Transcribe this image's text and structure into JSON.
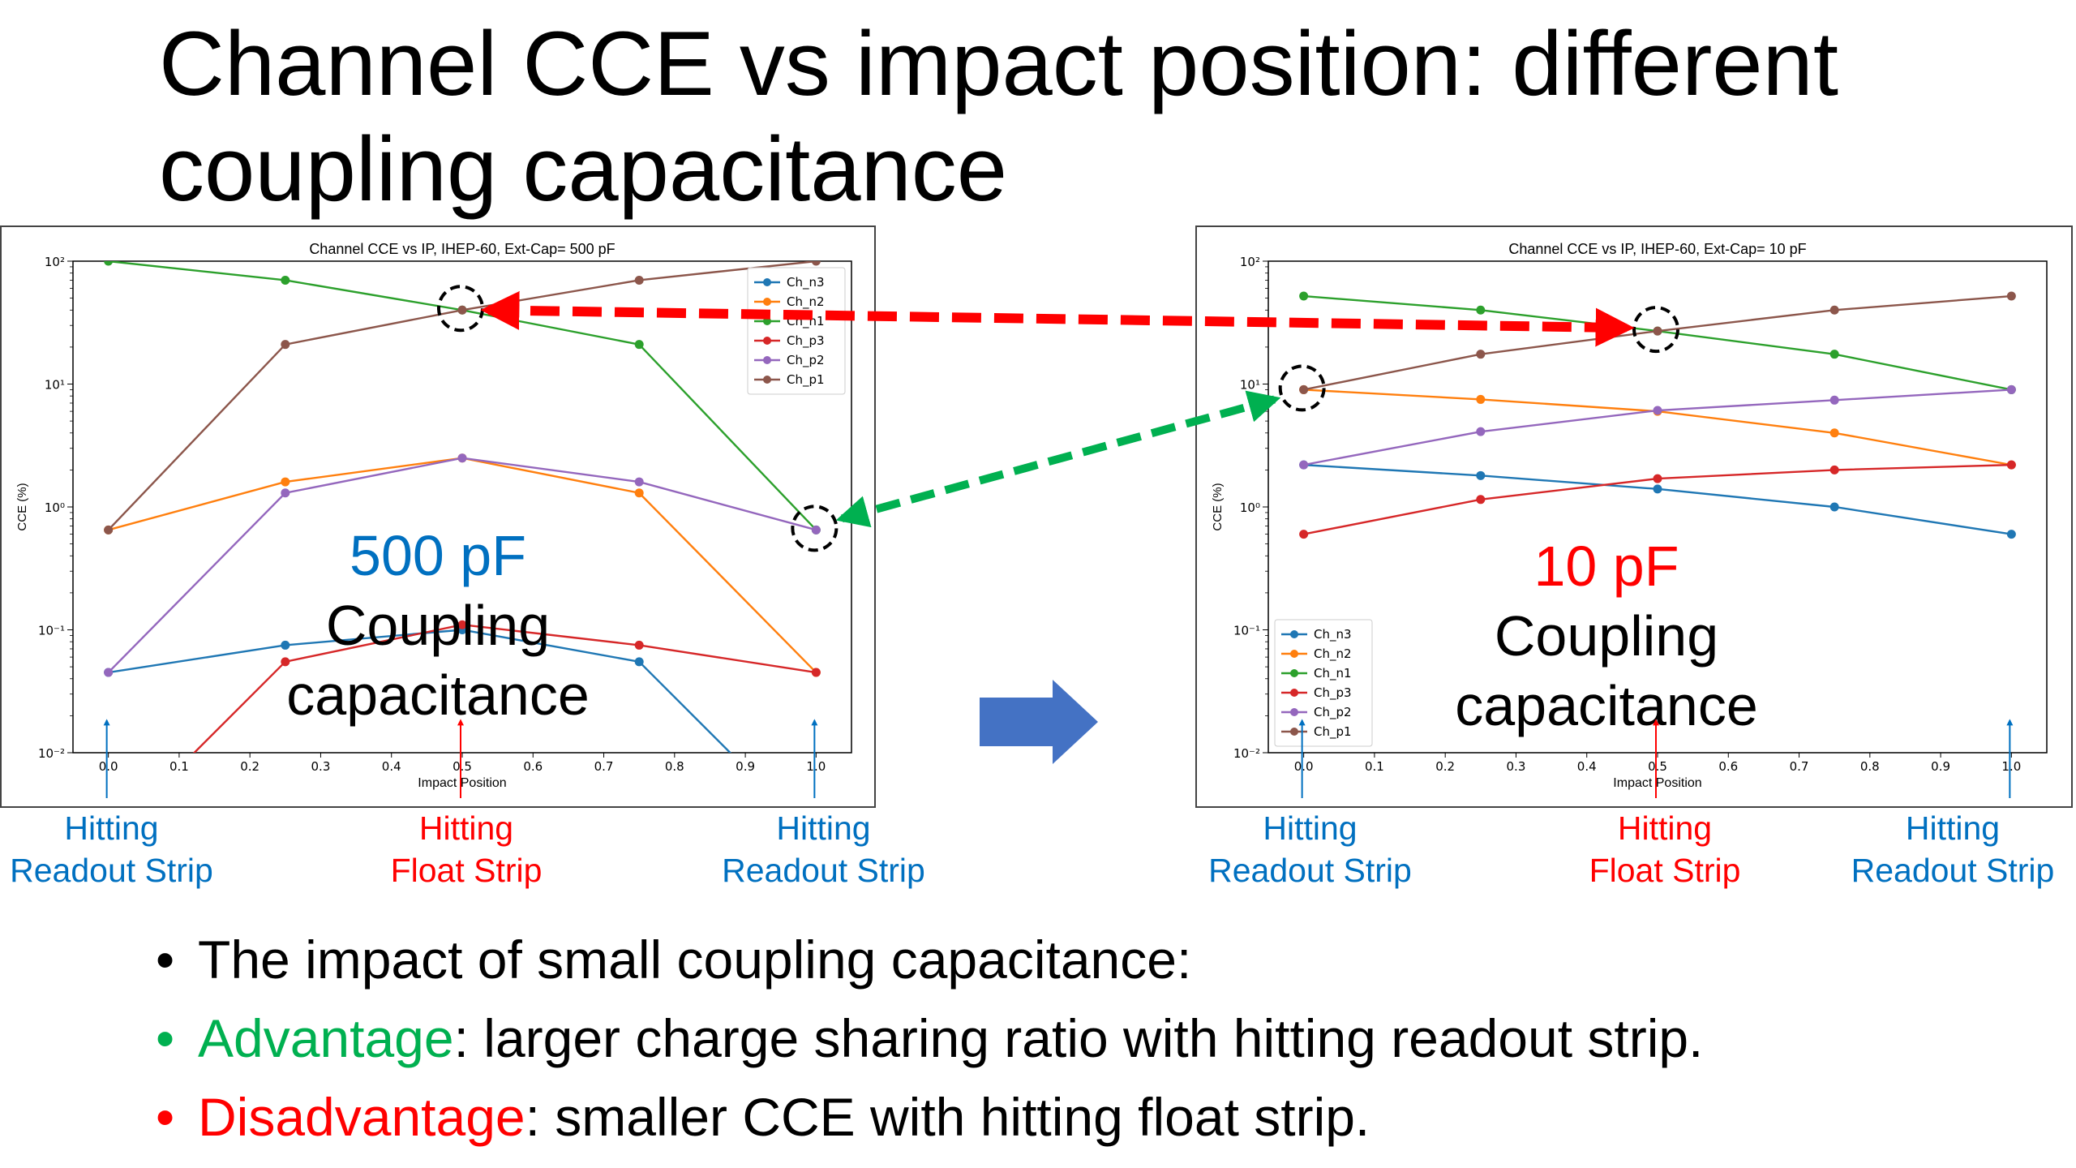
{
  "slide": {
    "title": "Channel CCE vs impact position: different coupling capacitance",
    "bullets": [
      {
        "text": "The impact of small coupling capacitance:"
      },
      {
        "keyword": "Advantage",
        "text": ": larger charge sharing ratio with hitting readout strip."
      },
      {
        "keyword": "Disadvantage",
        "text": ": smaller CCE with hitting float strip."
      }
    ],
    "annotations": {
      "left_cap_value": "500 pF",
      "right_cap_value": "10 pF",
      "cap_word_1": "Coupling",
      "cap_word_2": "capacitance",
      "hit_readout_1": "Hitting",
      "hit_readout_2": "Readout Strip",
      "hit_float_1": "Hitting",
      "hit_float_2": "Float Strip"
    },
    "colors": {
      "blue_text": "#0070c0",
      "red_text": "#ff0000",
      "green_text": "#00b050",
      "arrow_red": "#ff0000",
      "arrow_green": "#00b050",
      "block_arrow": "#4472c4"
    }
  },
  "chart_data": [
    {
      "type": "line",
      "title": "Channel CCE vs IP, IHEP-60, Ext-Cap= 500 pF",
      "xlabel": "Impact Position",
      "ylabel": "CCE (%)",
      "yscale": "log",
      "ylim": [
        0.01,
        100
      ],
      "xlim": [
        -0.05,
        1.05
      ],
      "xticks": [
        "0.0",
        "0.1",
        "0.2",
        "0.3",
        "0.4",
        "0.5",
        "0.6",
        "0.7",
        "0.8",
        "0.9",
        "1.0"
      ],
      "yticks": [
        "10⁻²",
        "10⁻¹",
        "10⁰",
        "10¹",
        "10²"
      ],
      "legend": "top-right",
      "x": [
        0,
        0.25,
        0.5,
        0.75,
        1.0
      ],
      "series": [
        {
          "name": "Ch_n3",
          "color": "#1f77b4",
          "values": [
            0.045,
            0.075,
            0.1,
            0.055,
            0.002
          ]
        },
        {
          "name": "Ch_n2",
          "color": "#ff7f0e",
          "values": [
            0.65,
            1.6,
            2.5,
            1.3,
            0.045
          ]
        },
        {
          "name": "Ch_n1",
          "color": "#2ca02c",
          "values": [
            100,
            70,
            40,
            21,
            0.65
          ]
        },
        {
          "name": "Ch_p3",
          "color": "#d62728",
          "values": [
            0.002,
            0.055,
            0.11,
            0.075,
            0.045
          ]
        },
        {
          "name": "Ch_p2",
          "color": "#9467bd",
          "values": [
            0.045,
            1.3,
            2.5,
            1.6,
            0.65
          ]
        },
        {
          "name": "Ch_p1",
          "color": "#8c564b",
          "values": [
            0.65,
            21,
            40,
            70,
            100
          ]
        }
      ]
    },
    {
      "type": "line",
      "title": "Channel CCE vs IP, IHEP-60, Ext-Cap= 10 pF",
      "xlabel": "Impact Position",
      "ylabel": "CCE (%)",
      "yscale": "log",
      "ylim": [
        0.01,
        100
      ],
      "xlim": [
        -0.05,
        1.05
      ],
      "xticks": [
        "0.0",
        "0.1",
        "0.2",
        "0.3",
        "0.4",
        "0.5",
        "0.6",
        "0.7",
        "0.8",
        "0.9",
        "1.0"
      ],
      "yticks": [
        "10⁻²",
        "10⁻¹",
        "10⁰",
        "10¹",
        "10²"
      ],
      "legend": "bottom-left",
      "x": [
        0,
        0.25,
        0.5,
        0.75,
        1.0
      ],
      "series": [
        {
          "name": "Ch_n3",
          "color": "#1f77b4",
          "values": [
            2.2,
            1.8,
            1.4,
            1.0,
            0.6
          ]
        },
        {
          "name": "Ch_n2",
          "color": "#ff7f0e",
          "values": [
            9,
            7.5,
            6,
            4,
            2.2
          ]
        },
        {
          "name": "Ch_n1",
          "color": "#2ca02c",
          "values": [
            52,
            40,
            27,
            17.5,
            9
          ]
        },
        {
          "name": "Ch_p3",
          "color": "#d62728",
          "values": [
            0.6,
            1.15,
            1.7,
            2.0,
            2.2
          ]
        },
        {
          "name": "Ch_p2",
          "color": "#9467bd",
          "values": [
            2.2,
            4.1,
            6.1,
            7.4,
            9
          ]
        },
        {
          "name": "Ch_p1",
          "color": "#8c564b",
          "values": [
            9,
            17.5,
            27,
            40,
            52
          ]
        }
      ]
    }
  ]
}
